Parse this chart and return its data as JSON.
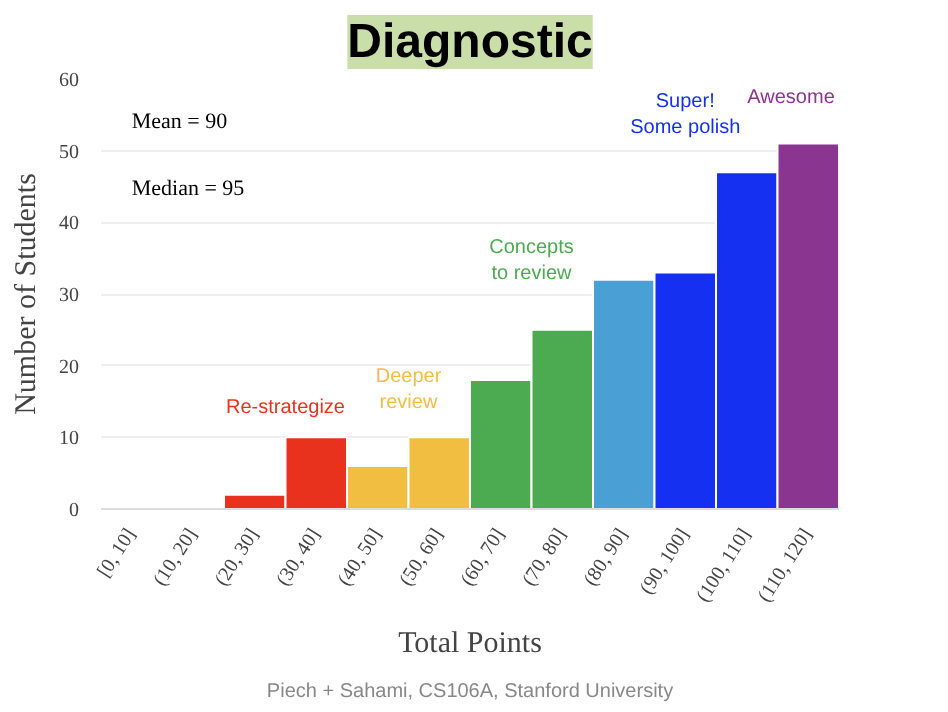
{
  "chart_data": {
    "type": "bar",
    "title": "Diagnostic",
    "xlabel": "Total Points",
    "ylabel": "Number of Students",
    "categories": [
      "[0, 10]",
      "(10, 20]",
      "(20, 30]",
      "(30, 40]",
      "(40, 50]",
      "(50, 60]",
      "(60, 70]",
      "(70, 80]",
      "(80, 90]",
      "(90, 100]",
      "(100, 110]",
      "(110, 120]"
    ],
    "values": [
      0,
      0,
      2,
      10,
      6,
      10,
      18,
      25,
      32,
      33,
      47,
      51
    ],
    "colors": [
      "#e8321e",
      "#e8321e",
      "#e8321e",
      "#e8321e",
      "#f2be42",
      "#f2be42",
      "#4caa50",
      "#4caa50",
      "#4a9fd4",
      "#1530f0",
      "#1530f0",
      "#8a3590"
    ],
    "ylim": [
      0,
      60
    ],
    "yticks": [
      0,
      10,
      20,
      30,
      40,
      50,
      60
    ],
    "grid": "y",
    "annotations": [
      "Mean = 90",
      "Median = 95",
      "Re-strategize",
      "Deeper\nreview",
      "Concepts\nto review",
      "Super!\nSome polish",
      "Awesome",
      "Piech + Sahami, CS106A, Stanford University"
    ]
  }
}
